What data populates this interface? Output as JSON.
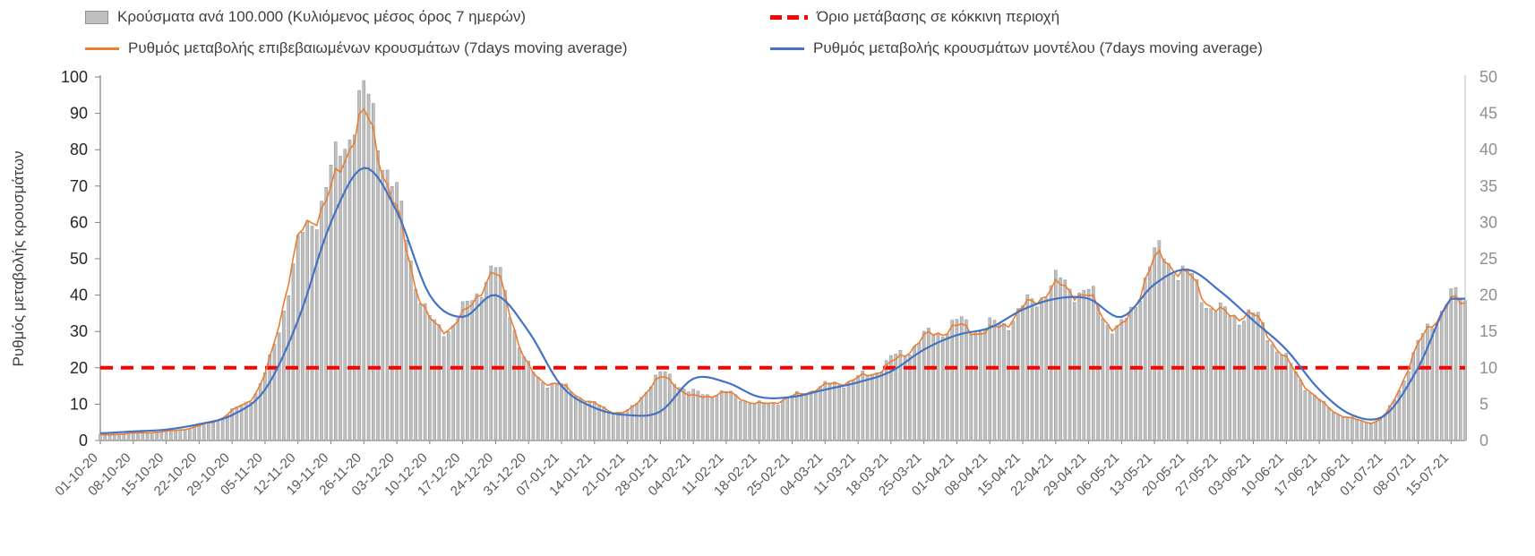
{
  "legend": {
    "items": [
      {
        "label": "Κρούσματα ανά 100.000 (Κυλιόμενος μέσος όρος 7 ημερών)",
        "swatch": "bar-swatch"
      },
      {
        "label": "Όριο μετάβασης σε κόκκινη περιοχή",
        "swatch": "red-dashed-swatch"
      },
      {
        "label": "Ρυθμός μεταβολής επιβεβαιωμένων κρουσμάτων (7days moving average)",
        "swatch": "orange-line-swatch"
      },
      {
        "label": "Ρυθμός μεταβολής κρουσμάτων μοντέλου (7days moving average)",
        "swatch": "blue-line-swatch"
      }
    ]
  },
  "chart_data": {
    "type": "bar",
    "title": "",
    "legend_position": "top",
    "grid": false,
    "categories": [
      "01-10-20",
      "08-10-20",
      "15-10-20",
      "22-10-20",
      "29-10-20",
      "05-11-20",
      "12-11-20",
      "19-11-20",
      "26-11-20",
      "03-12-20",
      "10-12-20",
      "17-12-20",
      "24-12-20",
      "31-12-20",
      "07-01-21",
      "14-01-21",
      "21-01-21",
      "28-01-21",
      "04-02-21",
      "11-02-21",
      "18-02-21",
      "25-02-21",
      "04-03-21",
      "11-03-21",
      "18-03-21",
      "25-03-21",
      "01-04-21",
      "08-04-21",
      "15-04-21",
      "22-04-21",
      "29-04-21",
      "06-05-21",
      "13-05-21",
      "20-05-21",
      "27-05-21",
      "03-06-21",
      "10-06-21",
      "17-06-21",
      "24-06-21",
      "01-07-21",
      "08-07-21",
      "15-07-21"
    ],
    "x_axis": {
      "note": "weekly tick labels; bars and lines are daily values"
    },
    "series": [
      {
        "name": "Κρούσματα ανά 100.000 (Κυλιόμενος μέσος όρος 7 ημερών)",
        "type": "bar",
        "axis": "right",
        "color": "#bfbfbf",
        "values": [
          0.8,
          1,
          1.3,
          2,
          4,
          9,
          26,
          36,
          46.5,
          33,
          16.5,
          17.5,
          23,
          10,
          7.5,
          5,
          4,
          9,
          6.5,
          6.5,
          5,
          6,
          7.5,
          8.5,
          11,
          14,
          16,
          15.5,
          18,
          21.5,
          20,
          15.5,
          25,
          22.5,
          17.5,
          17,
          11,
          5.5,
          3,
          3.5,
          13,
          19.5
        ]
      },
      {
        "name": "Ρυθμός μεταβολής επιβεβαιωμένων κρουσμάτων (7days moving average)",
        "type": "line",
        "axis": "left",
        "color": "#ed7d31",
        "values": [
          1.5,
          2,
          2.5,
          4,
          8,
          18,
          54,
          68,
          88,
          62,
          33,
          34,
          45,
          20,
          15,
          10,
          8,
          17,
          12,
          13,
          10,
          12,
          15,
          17,
          21,
          28,
          31,
          30,
          36,
          42,
          39,
          31,
          49,
          45,
          35,
          34,
          22,
          11,
          6,
          7,
          26,
          38
        ]
      },
      {
        "name": "Ρυθμός μεταβολής κρουσμάτων μοντέλου (7days moving average)",
        "type": "line",
        "axis": "left",
        "color": "#4472c4",
        "values": [
          2,
          2.5,
          3,
          4.5,
          7,
          14,
          33,
          60,
          75,
          63,
          40,
          34,
          40,
          30,
          15,
          9,
          7,
          8,
          17,
          16,
          12,
          12,
          14,
          16,
          19,
          25,
          29,
          31,
          36,
          39,
          39,
          34,
          43,
          47,
          41,
          33,
          25,
          14,
          7,
          7,
          20,
          39
        ]
      }
    ],
    "threshold": {
      "name": "Όριο μετάβασης σε κόκκινη περιοχή",
      "axis": "left",
      "value": 20,
      "color": "#ff0000",
      "style": "dashed"
    },
    "left_axis": {
      "label": "Ρυθμός μεταβολής κρουσμάτων",
      "min": 0,
      "max": 100,
      "step": 10
    },
    "right_axis": {
      "label": "",
      "min": 0,
      "max": 50,
      "step": 5
    }
  }
}
